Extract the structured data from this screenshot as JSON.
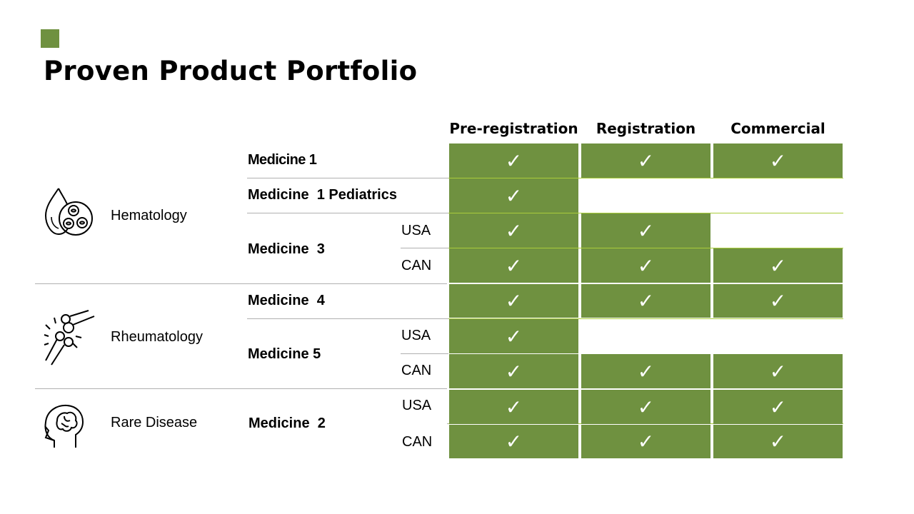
{
  "title": "Proven Product Portfolio",
  "accent_color": "#6f9140",
  "columns": [
    "Pre-registration",
    "Registration",
    "Commercial"
  ],
  "check": "✓",
  "areas": [
    {
      "label": "Hematology",
      "icon": "blood-cells-icon"
    },
    {
      "label": "Rheumatology",
      "icon": "joint-pain-icon"
    },
    {
      "label": "Rare Disease",
      "icon": "brain-head-icon"
    }
  ],
  "medicines": [
    {
      "label": "Medicine 1"
    },
    {
      "label": "Medicine  1 Pediatrics"
    },
    {
      "label": "Medicine  3",
      "regions": [
        "USA",
        "CAN"
      ]
    },
    {
      "label": "Medicine  4"
    },
    {
      "label": "Medicine 5",
      "regions": [
        "USA",
        "CAN"
      ]
    },
    {
      "label": "Medicine  2",
      "regions": [
        "USA",
        "CAN"
      ]
    }
  ],
  "rows": [
    {
      "medicine": "Medicine 1",
      "region": "",
      "stages": [
        true,
        true,
        true
      ]
    },
    {
      "medicine": "Medicine  1 Pediatrics",
      "region": "",
      "stages": [
        true,
        false,
        false
      ]
    },
    {
      "medicine": "Medicine  3",
      "region": "USA",
      "stages": [
        true,
        true,
        false
      ]
    },
    {
      "medicine": "Medicine  3",
      "region": "CAN",
      "stages": [
        true,
        true,
        true
      ]
    },
    {
      "medicine": "Medicine  4",
      "region": "",
      "stages": [
        true,
        true,
        true
      ]
    },
    {
      "medicine": "Medicine 5",
      "region": "USA",
      "stages": [
        true,
        false,
        false
      ]
    },
    {
      "medicine": "Medicine 5",
      "region": "CAN",
      "stages": [
        true,
        true,
        true
      ]
    },
    {
      "medicine": "Medicine  2",
      "region": "USA",
      "stages": [
        true,
        true,
        true
      ]
    },
    {
      "medicine": "Medicine  2",
      "region": "CAN",
      "stages": [
        true,
        true,
        true
      ]
    }
  ]
}
